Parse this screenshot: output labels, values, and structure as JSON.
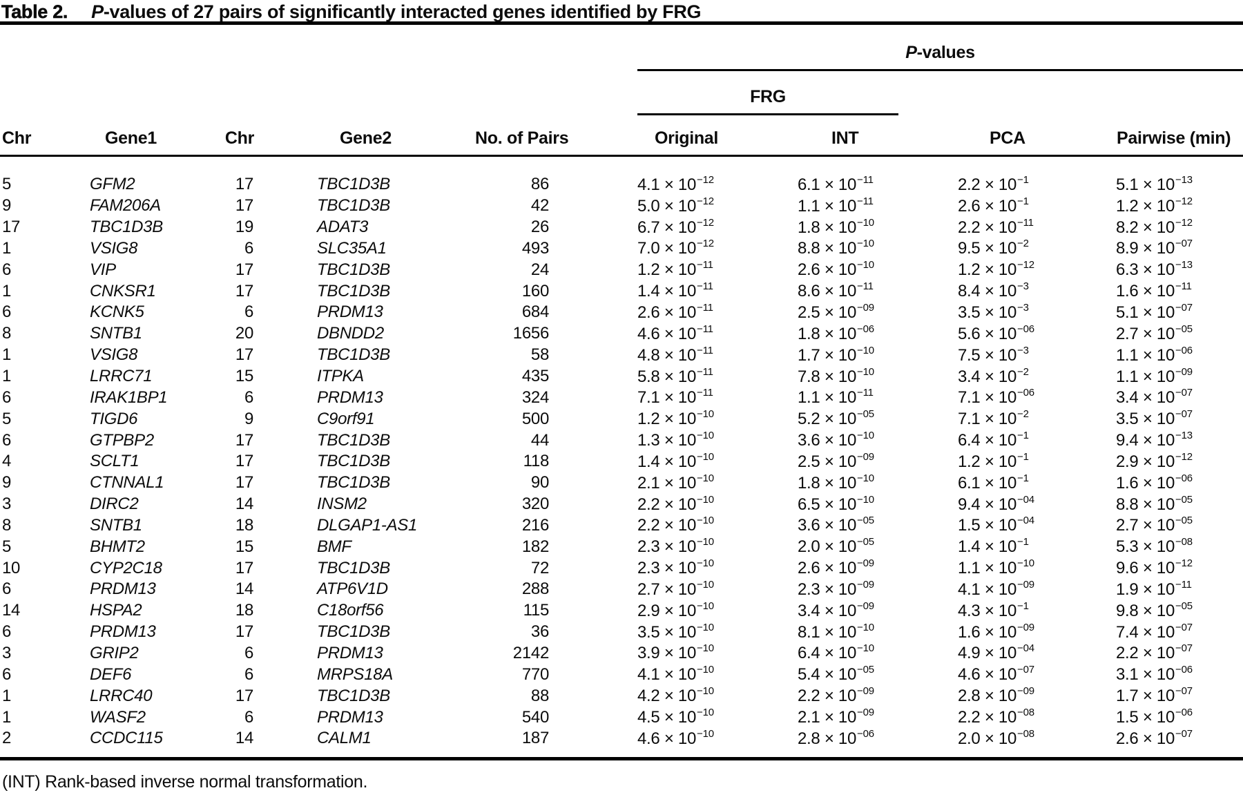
{
  "title": {
    "label": "Table 2.",
    "caption_italic": "P",
    "caption_rest": "-values of 27 pairs of significantly interacted genes identified by FRG"
  },
  "header": {
    "pvalues_group": {
      "italic": "P",
      "rest": "-values"
    },
    "frg_group": "FRG",
    "columns": [
      "Chr",
      "Gene1",
      "Chr",
      "Gene2",
      "No. of Pairs",
      "Original",
      "INT",
      "PCA",
      "Pairwise (min)"
    ]
  },
  "rows": [
    {
      "chr1": "5",
      "gene1": "GFM2",
      "chr2": "17",
      "gene2": "TBC1D3B",
      "pairs": "86",
      "frg_original": {
        "m": "4.1",
        "e": "−12"
      },
      "frg_int": {
        "m": "6.1",
        "e": "−11"
      },
      "pca": {
        "m": "2.2",
        "e": "−1"
      },
      "pairwise_min": {
        "m": "5.1",
        "e": "−13"
      }
    },
    {
      "chr1": "9",
      "gene1": "FAM206A",
      "chr2": "17",
      "gene2": "TBC1D3B",
      "pairs": "42",
      "frg_original": {
        "m": "5.0",
        "e": "−12"
      },
      "frg_int": {
        "m": "1.1",
        "e": "−11"
      },
      "pca": {
        "m": "2.6",
        "e": "−1"
      },
      "pairwise_min": {
        "m": "1.2",
        "e": "−12"
      }
    },
    {
      "chr1": "17",
      "gene1": "TBC1D3B",
      "chr2": "19",
      "gene2": "ADAT3",
      "pairs": "26",
      "frg_original": {
        "m": "6.7",
        "e": "−12"
      },
      "frg_int": {
        "m": "1.8",
        "e": "−10"
      },
      "pca": {
        "m": "2.2",
        "e": "−11"
      },
      "pairwise_min": {
        "m": "8.2",
        "e": "−12"
      }
    },
    {
      "chr1": "1",
      "gene1": "VSIG8",
      "chr2": "6",
      "gene2": "SLC35A1",
      "pairs": "493",
      "frg_original": {
        "m": "7.0",
        "e": "−12"
      },
      "frg_int": {
        "m": "8.8",
        "e": "−10"
      },
      "pca": {
        "m": "9.5",
        "e": "−2"
      },
      "pairwise_min": {
        "m": "8.9",
        "e": "−07"
      }
    },
    {
      "chr1": "6",
      "gene1": "VIP",
      "chr2": "17",
      "gene2": "TBC1D3B",
      "pairs": "24",
      "frg_original": {
        "m": "1.2",
        "e": "−11"
      },
      "frg_int": {
        "m": "2.6",
        "e": "−10"
      },
      "pca": {
        "m": "1.2",
        "e": "−12"
      },
      "pairwise_min": {
        "m": "6.3",
        "e": "−13"
      }
    },
    {
      "chr1": "1",
      "gene1": "CNKSR1",
      "chr2": "17",
      "gene2": "TBC1D3B",
      "pairs": "160",
      "frg_original": {
        "m": "1.4",
        "e": "−11"
      },
      "frg_int": {
        "m": "8.6",
        "e": "−11"
      },
      "pca": {
        "m": "8.4",
        "e": "−3"
      },
      "pairwise_min": {
        "m": "1.6",
        "e": "−11"
      }
    },
    {
      "chr1": "6",
      "gene1": "KCNK5",
      "chr2": "6",
      "gene2": "PRDM13",
      "pairs": "684",
      "frg_original": {
        "m": "2.6",
        "e": "−11"
      },
      "frg_int": {
        "m": "2.5",
        "e": "−09"
      },
      "pca": {
        "m": "3.5",
        "e": "−3"
      },
      "pairwise_min": {
        "m": "5.1",
        "e": "−07"
      }
    },
    {
      "chr1": "8",
      "gene1": "SNTB1",
      "chr2": "20",
      "gene2": "DBNDD2",
      "pairs": "1656",
      "frg_original": {
        "m": "4.6",
        "e": "−11"
      },
      "frg_int": {
        "m": "1.8",
        "e": "−06"
      },
      "pca": {
        "m": "5.6",
        "e": "−06"
      },
      "pairwise_min": {
        "m": "2.7",
        "e": "−05"
      }
    },
    {
      "chr1": "1",
      "gene1": "VSIG8",
      "chr2": "17",
      "gene2": "TBC1D3B",
      "pairs": "58",
      "frg_original": {
        "m": "4.8",
        "e": "−11"
      },
      "frg_int": {
        "m": "1.7",
        "e": "−10"
      },
      "pca": {
        "m": "7.5",
        "e": "−3"
      },
      "pairwise_min": {
        "m": "1.1",
        "e": "−06"
      }
    },
    {
      "chr1": "1",
      "gene1": "LRRC71",
      "chr2": "15",
      "gene2": "ITPKA",
      "pairs": "435",
      "frg_original": {
        "m": "5.8",
        "e": "−11"
      },
      "frg_int": {
        "m": "7.8",
        "e": "−10"
      },
      "pca": {
        "m": "3.4",
        "e": "−2"
      },
      "pairwise_min": {
        "m": "1.1",
        "e": "−09"
      }
    },
    {
      "chr1": "6",
      "gene1": "IRAK1BP1",
      "chr2": "6",
      "gene2": "PRDM13",
      "pairs": "324",
      "frg_original": {
        "m": "7.1",
        "e": "−11"
      },
      "frg_int": {
        "m": "1.1",
        "e": "−11"
      },
      "pca": {
        "m": "7.1",
        "e": "−06"
      },
      "pairwise_min": {
        "m": "3.4",
        "e": "−07"
      }
    },
    {
      "chr1": "5",
      "gene1": "TIGD6",
      "chr2": "9",
      "gene2": "C9orf91",
      "pairs": "500",
      "frg_original": {
        "m": "1.2",
        "e": "−10"
      },
      "frg_int": {
        "m": "5.2",
        "e": "−05"
      },
      "pca": {
        "m": "7.1",
        "e": "−2"
      },
      "pairwise_min": {
        "m": "3.5",
        "e": "−07"
      }
    },
    {
      "chr1": "6",
      "gene1": "GTPBP2",
      "chr2": "17",
      "gene2": "TBC1D3B",
      "pairs": "44",
      "frg_original": {
        "m": "1.3",
        "e": "−10"
      },
      "frg_int": {
        "m": "3.6",
        "e": "−10"
      },
      "pca": {
        "m": "6.4",
        "e": "−1"
      },
      "pairwise_min": {
        "m": "9.4",
        "e": "−13"
      }
    },
    {
      "chr1": "4",
      "gene1": "SCLT1",
      "chr2": "17",
      "gene2": "TBC1D3B",
      "pairs": "118",
      "frg_original": {
        "m": "1.4",
        "e": "−10"
      },
      "frg_int": {
        "m": "2.5",
        "e": "−09"
      },
      "pca": {
        "m": "1.2",
        "e": "−1"
      },
      "pairwise_min": {
        "m": "2.9",
        "e": "−12"
      }
    },
    {
      "chr1": "9",
      "gene1": "CTNNAL1",
      "chr2": "17",
      "gene2": "TBC1D3B",
      "pairs": "90",
      "frg_original": {
        "m": "2.1",
        "e": "−10"
      },
      "frg_int": {
        "m": "1.8",
        "e": "−10"
      },
      "pca": {
        "m": "6.1",
        "e": "−1"
      },
      "pairwise_min": {
        "m": "1.6",
        "e": "−06"
      }
    },
    {
      "chr1": "3",
      "gene1": "DIRC2",
      "chr2": "14",
      "gene2": "INSM2",
      "pairs": "320",
      "frg_original": {
        "m": "2.2",
        "e": "−10"
      },
      "frg_int": {
        "m": "6.5",
        "e": "−10"
      },
      "pca": {
        "m": "9.4",
        "e": "−04"
      },
      "pairwise_min": {
        "m": "8.8",
        "e": "−05"
      }
    },
    {
      "chr1": "8",
      "gene1": "SNTB1",
      "chr2": "18",
      "gene2": "DLGAP1-AS1",
      "pairs": "216",
      "frg_original": {
        "m": "2.2",
        "e": "−10"
      },
      "frg_int": {
        "m": "3.6",
        "e": "−05"
      },
      "pca": {
        "m": "1.5",
        "e": "−04"
      },
      "pairwise_min": {
        "m": "2.7",
        "e": "−05"
      }
    },
    {
      "chr1": "5",
      "gene1": "BHMT2",
      "chr2": "15",
      "gene2": "BMF",
      "pairs": "182",
      "frg_original": {
        "m": "2.3",
        "e": "−10"
      },
      "frg_int": {
        "m": "2.0",
        "e": "−05"
      },
      "pca": {
        "m": "1.4",
        "e": "−1"
      },
      "pairwise_min": {
        "m": "5.3",
        "e": "−08"
      }
    },
    {
      "chr1": "10",
      "gene1": "CYP2C18",
      "chr2": "17",
      "gene2": "TBC1D3B",
      "pairs": "72",
      "frg_original": {
        "m": "2.3",
        "e": "−10"
      },
      "frg_int": {
        "m": "2.6",
        "e": "−09"
      },
      "pca": {
        "m": "1.1",
        "e": "−10"
      },
      "pairwise_min": {
        "m": "9.6",
        "e": "−12"
      }
    },
    {
      "chr1": "6",
      "gene1": "PRDM13",
      "chr2": "14",
      "gene2": "ATP6V1D",
      "pairs": "288",
      "frg_original": {
        "m": "2.7",
        "e": "−10"
      },
      "frg_int": {
        "m": "2.3",
        "e": "−09"
      },
      "pca": {
        "m": "4.1",
        "e": "−09"
      },
      "pairwise_min": {
        "m": "1.9",
        "e": "−11"
      }
    },
    {
      "chr1": "14",
      "gene1": "HSPA2",
      "chr2": "18",
      "gene2": "C18orf56",
      "pairs": "115",
      "frg_original": {
        "m": "2.9",
        "e": "−10"
      },
      "frg_int": {
        "m": "3.4",
        "e": "−09"
      },
      "pca": {
        "m": "4.3",
        "e": "−1"
      },
      "pairwise_min": {
        "m": "9.8",
        "e": "−05"
      }
    },
    {
      "chr1": "6",
      "gene1": "PRDM13",
      "chr2": "17",
      "gene2": "TBC1D3B",
      "pairs": "36",
      "frg_original": {
        "m": "3.5",
        "e": "−10"
      },
      "frg_int": {
        "m": "8.1",
        "e": "−10"
      },
      "pca": {
        "m": "1.6",
        "e": "−09"
      },
      "pairwise_min": {
        "m": "7.4",
        "e": "−07"
      }
    },
    {
      "chr1": "3",
      "gene1": "GRIP2",
      "chr2": "6",
      "gene2": "PRDM13",
      "pairs": "2142",
      "frg_original": {
        "m": "3.9",
        "e": "−10"
      },
      "frg_int": {
        "m": "6.4",
        "e": "−10"
      },
      "pca": {
        "m": "4.9",
        "e": "−04"
      },
      "pairwise_min": {
        "m": "2.2",
        "e": "−07"
      }
    },
    {
      "chr1": "6",
      "gene1": "DEF6",
      "chr2": "6",
      "gene2": "MRPS18A",
      "pairs": "770",
      "frg_original": {
        "m": "4.1",
        "e": "−10"
      },
      "frg_int": {
        "m": "5.4",
        "e": "−05"
      },
      "pca": {
        "m": "4.6",
        "e": "−07"
      },
      "pairwise_min": {
        "m": "3.1",
        "e": "−06"
      }
    },
    {
      "chr1": "1",
      "gene1": "LRRC40",
      "chr2": "17",
      "gene2": "TBC1D3B",
      "pairs": "88",
      "frg_original": {
        "m": "4.2",
        "e": "−10"
      },
      "frg_int": {
        "m": "2.2",
        "e": "−09"
      },
      "pca": {
        "m": "2.8",
        "e": "−09"
      },
      "pairwise_min": {
        "m": "1.7",
        "e": "−07"
      }
    },
    {
      "chr1": "1",
      "gene1": "WASF2",
      "chr2": "6",
      "gene2": "PRDM13",
      "pairs": "540",
      "frg_original": {
        "m": "4.5",
        "e": "−10"
      },
      "frg_int": {
        "m": "2.1",
        "e": "−09"
      },
      "pca": {
        "m": "2.2",
        "e": "−08"
      },
      "pairwise_min": {
        "m": "1.5",
        "e": "−06"
      }
    },
    {
      "chr1": "2",
      "gene1": "CCDC115",
      "chr2": "14",
      "gene2": "CALM1",
      "pairs": "187",
      "frg_original": {
        "m": "4.6",
        "e": "−10"
      },
      "frg_int": {
        "m": "2.8",
        "e": "−06"
      },
      "pca": {
        "m": "2.0",
        "e": "−08"
      },
      "pairwise_min": {
        "m": "2.6",
        "e": "−07"
      }
    }
  ],
  "footnote": "(INT) Rank-based inverse normal transformation.",
  "colors": {
    "text": "#0c0c0c",
    "rule": "#000000",
    "background": "#ffffff"
  },
  "multiply_sign": "×",
  "base": "10"
}
